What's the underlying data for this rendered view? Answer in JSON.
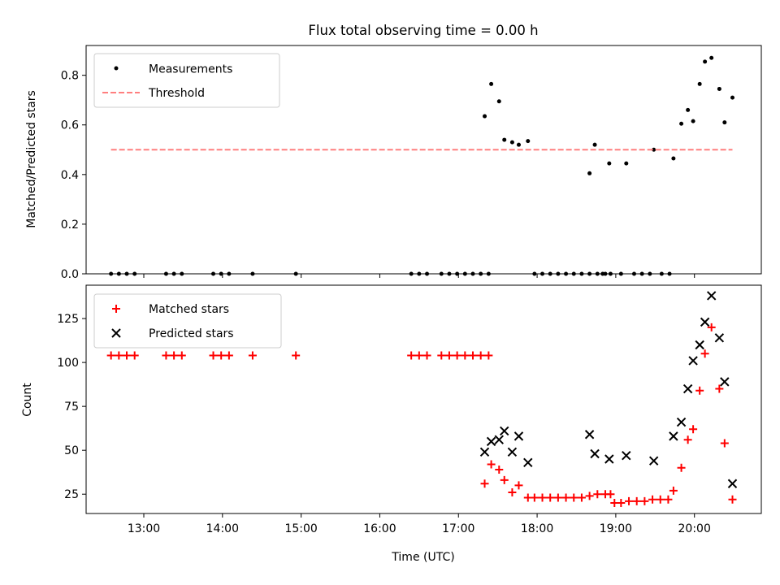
{
  "figure": {
    "title": "Flux total observing time = 0.00 h"
  },
  "chart_data": [
    {
      "type": "scatter",
      "title": "Flux total observing time = 0.00 h",
      "xlabel": "",
      "ylabel": "Matched/Predicted stars",
      "xlim": [
        "12:16",
        "20:51"
      ],
      "ylim": [
        0,
        0.92
      ],
      "yticks": [
        0.0,
        0.2,
        0.4,
        0.6,
        0.8
      ],
      "ytick_labels": [
        "0.0",
        "0.2",
        "0.4",
        "0.6",
        "0.8"
      ],
      "grid": false,
      "legend_position": "top-left",
      "series": [
        {
          "name": "Measurements",
          "marker": "dot",
          "color": "#000000",
          "points": [
            [
              "12:35",
              0
            ],
            [
              "12:41",
              0
            ],
            [
              "12:47",
              0
            ],
            [
              "12:53",
              0
            ],
            [
              "13:17",
              0
            ],
            [
              "13:23",
              0
            ],
            [
              "13:29",
              0
            ],
            [
              "13:53",
              0
            ],
            [
              "13:59",
              0
            ],
            [
              "14:05",
              0
            ],
            [
              "14:23",
              0
            ],
            [
              "14:56",
              0
            ],
            [
              "16:24",
              0
            ],
            [
              "16:30",
              0
            ],
            [
              "16:36",
              0
            ],
            [
              "16:47",
              0
            ],
            [
              "16:53",
              0
            ],
            [
              "16:59",
              0
            ],
            [
              "17:05",
              0
            ],
            [
              "17:11",
              0
            ],
            [
              "17:17",
              0
            ],
            [
              "17:23",
              0
            ],
            [
              "17:20",
              0.635
            ],
            [
              "17:25",
              0.765
            ],
            [
              "17:31",
              0.695
            ],
            [
              "17:35",
              0.54
            ],
            [
              "17:41",
              0.53
            ],
            [
              "17:46",
              0.52
            ],
            [
              "17:53",
              0.535
            ],
            [
              "17:58",
              0
            ],
            [
              "18:04",
              0
            ],
            [
              "18:10",
              0
            ],
            [
              "18:16",
              0
            ],
            [
              "18:22",
              0
            ],
            [
              "18:28",
              0
            ],
            [
              "18:34",
              0
            ],
            [
              "18:40",
              0
            ],
            [
              "18:46",
              0
            ],
            [
              "18:52",
              0
            ],
            [
              "18:40",
              0.405
            ],
            [
              "18:44",
              0.52
            ],
            [
              "18:50",
              0
            ],
            [
              "18:56",
              0
            ],
            [
              "18:55",
              0.445
            ],
            [
              "19:04",
              0
            ],
            [
              "19:08",
              0.445
            ],
            [
              "19:14",
              0
            ],
            [
              "19:20",
              0
            ],
            [
              "19:26",
              0
            ],
            [
              "19:29",
              0.5
            ],
            [
              "19:35",
              0
            ],
            [
              "19:41",
              0
            ],
            [
              "19:44",
              0.465
            ],
            [
              "19:50",
              0.605
            ],
            [
              "19:55",
              0.66
            ],
            [
              "19:59",
              0.615
            ],
            [
              "20:04",
              0.765
            ],
            [
              "20:08",
              0.855
            ],
            [
              "20:13",
              0.87
            ],
            [
              "20:19",
              0.745
            ],
            [
              "20:23",
              0.61
            ],
            [
              "20:29",
              0.71
            ]
          ]
        },
        {
          "name": "Threshold",
          "marker": "dashed-line",
          "color": "#ff7f7f",
          "points": [
            [
              "12:35",
              0.5
            ],
            [
              "20:29",
              0.5
            ]
          ]
        }
      ]
    },
    {
      "type": "scatter",
      "xlabel": "Time (UTC)",
      "ylabel": "Count",
      "xlim": [
        "12:16",
        "20:51"
      ],
      "ylim": [
        14,
        144
      ],
      "xticks": [
        "13:00",
        "14:00",
        "15:00",
        "16:00",
        "17:00",
        "18:00",
        "19:00",
        "20:00"
      ],
      "yticks": [
        25,
        50,
        75,
        100,
        125
      ],
      "ytick_labels": [
        "25",
        "50",
        "75",
        "100",
        "125"
      ],
      "grid": false,
      "legend_position": "top-left",
      "series": [
        {
          "name": "Matched stars",
          "marker": "plus",
          "color": "#ff0000",
          "points": [
            [
              "12:35",
              104
            ],
            [
              "12:41",
              104
            ],
            [
              "12:47",
              104
            ],
            [
              "12:53",
              104
            ],
            [
              "13:17",
              104
            ],
            [
              "13:23",
              104
            ],
            [
              "13:29",
              104
            ],
            [
              "13:53",
              104
            ],
            [
              "13:59",
              104
            ],
            [
              "14:05",
              104
            ],
            [
              "14:23",
              104
            ],
            [
              "14:56",
              104
            ],
            [
              "16:24",
              104
            ],
            [
              "16:30",
              104
            ],
            [
              "16:36",
              104
            ],
            [
              "16:47",
              104
            ],
            [
              "16:53",
              104
            ],
            [
              "16:59",
              104
            ],
            [
              "17:05",
              104
            ],
            [
              "17:11",
              104
            ],
            [
              "17:17",
              104
            ],
            [
              "17:23",
              104
            ],
            [
              "17:20",
              31
            ],
            [
              "17:25",
              42
            ],
            [
              "17:31",
              39
            ],
            [
              "17:35",
              33
            ],
            [
              "17:41",
              26
            ],
            [
              "17:46",
              30
            ],
            [
              "17:53",
              23
            ],
            [
              "17:58",
              23
            ],
            [
              "18:04",
              23
            ],
            [
              "18:10",
              23
            ],
            [
              "18:16",
              23
            ],
            [
              "18:22",
              23
            ],
            [
              "18:28",
              23
            ],
            [
              "18:34",
              23
            ],
            [
              "18:40",
              24
            ],
            [
              "18:46",
              25
            ],
            [
              "18:52",
              25
            ],
            [
              "18:56",
              25
            ],
            [
              "18:59",
              20
            ],
            [
              "19:04",
              20
            ],
            [
              "19:10",
              21
            ],
            [
              "19:16",
              21
            ],
            [
              "19:22",
              21
            ],
            [
              "19:28",
              22
            ],
            [
              "19:34",
              22
            ],
            [
              "19:40",
              22
            ],
            [
              "19:44",
              27
            ],
            [
              "19:50",
              40
            ],
            [
              "19:55",
              56
            ],
            [
              "19:59",
              62
            ],
            [
              "20:04",
              84
            ],
            [
              "20:08",
              105
            ],
            [
              "20:13",
              120
            ],
            [
              "20:19",
              85
            ],
            [
              "20:23",
              54
            ],
            [
              "20:29",
              22
            ]
          ]
        },
        {
          "name": "Predicted stars",
          "marker": "x",
          "color": "#000000",
          "points": [
            [
              "17:20",
              49
            ],
            [
              "17:25",
              55
            ],
            [
              "17:31",
              56
            ],
            [
              "17:35",
              61
            ],
            [
              "17:41",
              49
            ],
            [
              "17:46",
              58
            ],
            [
              "17:53",
              43
            ],
            [
              "18:40",
              59
            ],
            [
              "18:44",
              48
            ],
            [
              "18:55",
              45
            ],
            [
              "19:08",
              47
            ],
            [
              "19:29",
              44
            ],
            [
              "19:44",
              58
            ],
            [
              "19:50",
              66
            ],
            [
              "19:55",
              85
            ],
            [
              "19:59",
              101
            ],
            [
              "20:04",
              110
            ],
            [
              "20:08",
              123
            ],
            [
              "20:13",
              138
            ],
            [
              "20:19",
              114
            ],
            [
              "20:23",
              89
            ],
            [
              "20:29",
              31
            ]
          ]
        }
      ]
    }
  ]
}
